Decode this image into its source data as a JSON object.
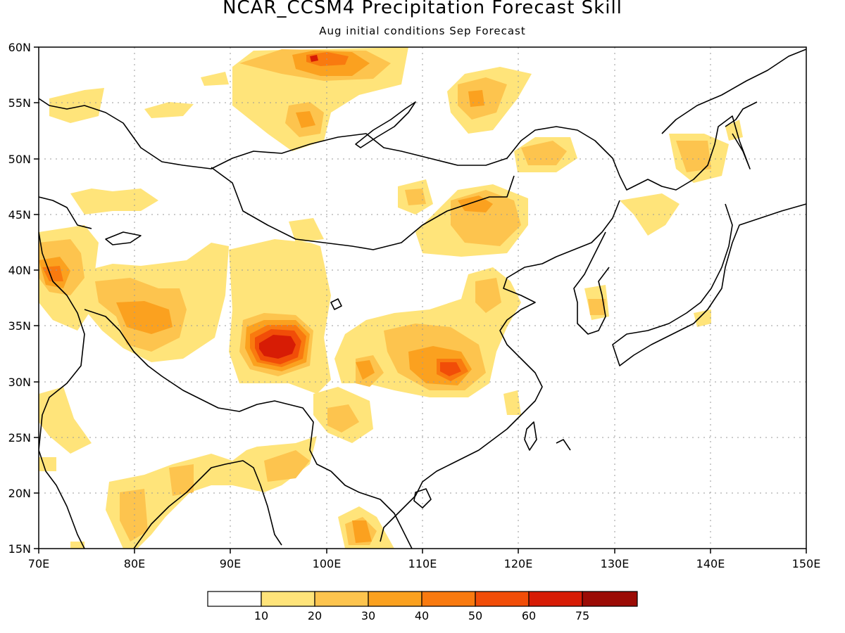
{
  "title": "NCAR_CCSM4 Precipitation Forecast Skill",
  "subtitle": "Aug initial conditions  Sep Forecast",
  "map": {
    "lon_range": [
      70,
      150
    ],
    "lat_range": [
      15,
      60
    ],
    "lon_ticks": [
      "70E",
      "80E",
      "90E",
      "100E",
      "110E",
      "120E",
      "130E",
      "140E",
      "150E"
    ],
    "lat_ticks": [
      "15N",
      "20N",
      "25N",
      "30N",
      "35N",
      "40N",
      "45N",
      "50N",
      "55N",
      "60N"
    ]
  },
  "colorbar": {
    "labels": [
      "10",
      "20",
      "30",
      "40",
      "50",
      "60",
      "75"
    ],
    "colors": [
      "#ffffff",
      "#ffe47a",
      "#fdc44e",
      "#fba11f",
      "#f97a0f",
      "#f14d08",
      "#d71c05",
      "#9b0b05"
    ]
  }
}
